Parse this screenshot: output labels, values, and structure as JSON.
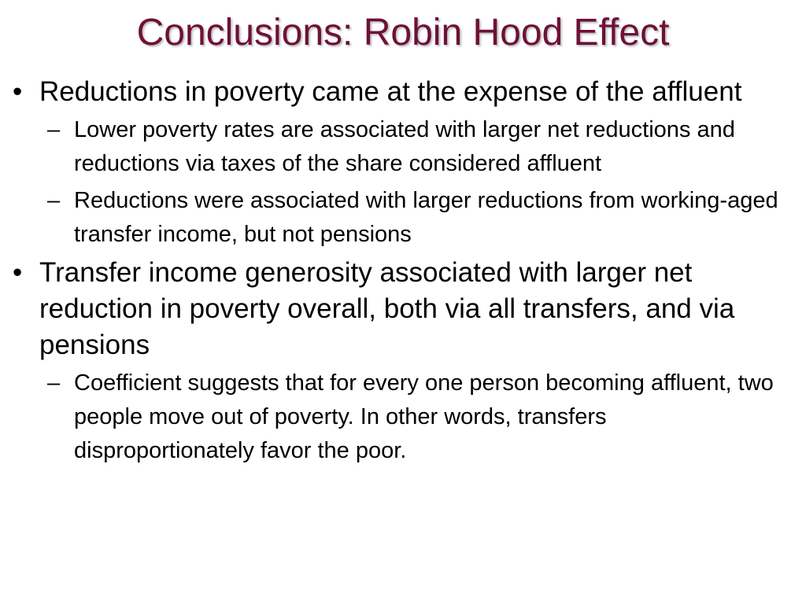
{
  "slide": {
    "title": "Conclusions: Robin Hood Effect",
    "title_color": "#6e1137",
    "bullet_symbol": "•",
    "sub_bullet_symbol": "–",
    "items": [
      {
        "text": "Reductions in poverty came at the expense of the affluent",
        "sub_items": [
          "Lower poverty rates are associated with larger net reductions and reductions via taxes of the share considered affluent",
          "Reductions were associated with larger reductions from working-aged transfer income, but not pensions"
        ]
      },
      {
        "text": "Transfer income generosity associated with larger net reduction in poverty overall, both via all transfers, and via pensions",
        "sub_items": [
          "Coefficient suggests that for every one person becoming affluent, two people move out of poverty.  In other words, transfers disproportionately favor the poor."
        ]
      }
    ]
  }
}
